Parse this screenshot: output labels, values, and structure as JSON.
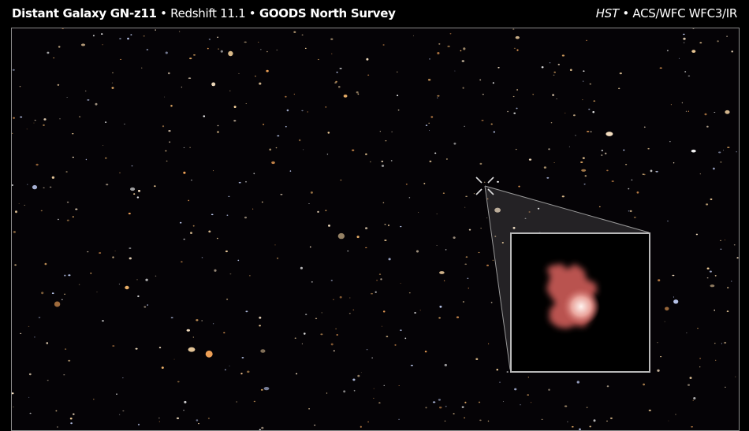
{
  "header": {
    "object": "Distant Galaxy GN-z11",
    "separator": "•",
    "redshift": "Redshift 11.1",
    "survey": "GOODS North Survey",
    "telescope": "HST",
    "instruments": "ACS/WFC WFC3/IR"
  },
  "colors": {
    "background": "#000000",
    "galaxy": "#c9605c",
    "frame": "#8a8a8a"
  },
  "icons": {
    "target_marker": "crosshair-icon"
  }
}
